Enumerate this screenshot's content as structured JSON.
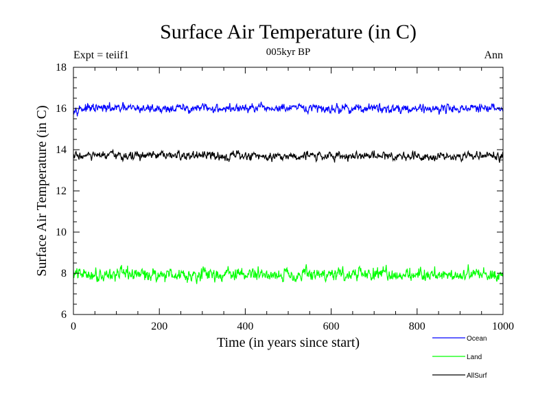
{
  "header": {
    "left": "Expt = teiif1",
    "right": "Ann"
  },
  "chart_data": {
    "type": "line",
    "title": "Surface Air Temperature (in C)",
    "subtitle": "005kyr BP",
    "xlabel": "Time (in years since start)",
    "ylabel": "Surface Air Temperature (in C)",
    "xlim": [
      0,
      1000
    ],
    "ylim": [
      6,
      18
    ],
    "x_ticks": [
      0,
      200,
      400,
      600,
      800,
      1000
    ],
    "y_ticks": [
      6,
      8,
      10,
      12,
      14,
      16,
      18
    ],
    "grid": false,
    "legend_position": "bottom-right, below plot",
    "series": [
      {
        "name": "Ocean",
        "color": "#0000ff",
        "mean": 16.0,
        "variability": 0.12
      },
      {
        "name": "Land",
        "color": "#00ff00",
        "mean": 7.95,
        "variability": 0.18
      },
      {
        "name": "AllSurf",
        "color": "#000000",
        "mean": 13.7,
        "variability": 0.12
      }
    ]
  }
}
